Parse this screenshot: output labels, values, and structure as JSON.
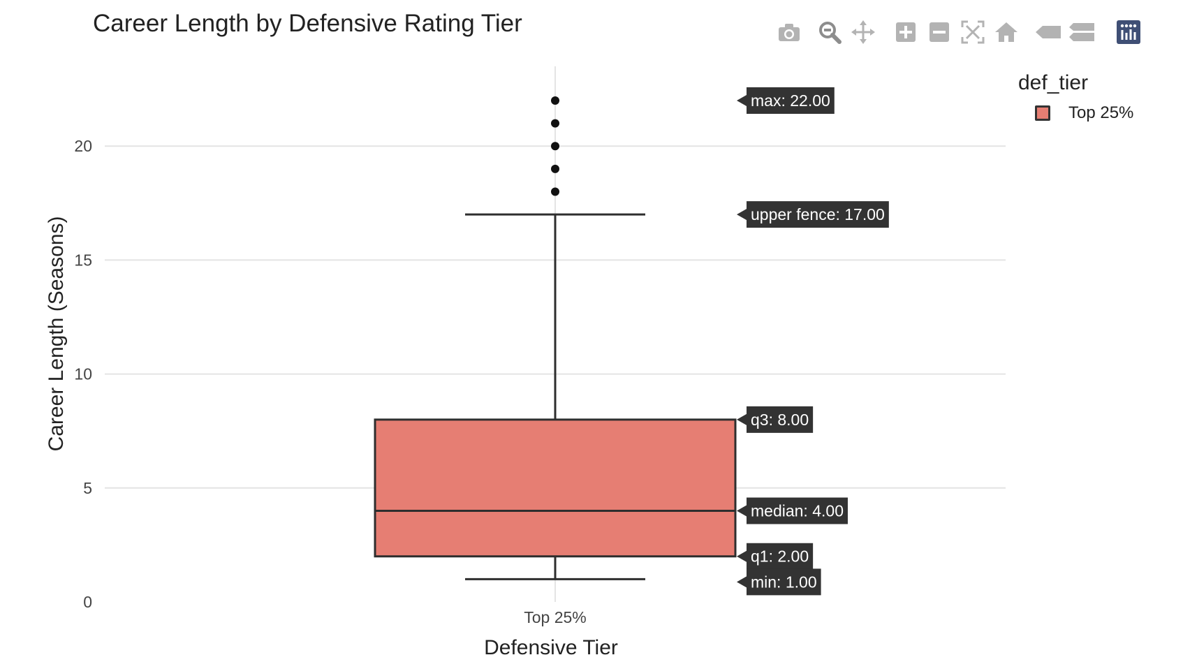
{
  "title": "Career Length by Defensive Rating Tier",
  "toolbar": {
    "icons": [
      "camera-icon",
      "zoom-icon",
      "pan-icon",
      "zoom-in-icon",
      "zoom-out-icon",
      "autoscale-icon",
      "home-icon",
      "hover-closest-icon",
      "hover-compare-icon",
      "plotly-logo-icon"
    ],
    "icon_color": "#b3b3b3",
    "logo_color": "#3f4f75"
  },
  "legend": {
    "title": "def_tier",
    "items": [
      {
        "label": "Top 25%",
        "color": "#e67e73"
      }
    ]
  },
  "chart_data": {
    "type": "box",
    "title": "Career Length by Defensive Rating Tier",
    "xlabel": "Defensive Tier",
    "ylabel": "Career Length (Seasons)",
    "categories": [
      "Top 25%"
    ],
    "ylim": [
      0,
      23.5
    ],
    "yticks": [
      0,
      5,
      10,
      15,
      20
    ],
    "grid": true,
    "legend_position": "top-right",
    "series": [
      {
        "name": "Top 25%",
        "category": "Top 25%",
        "color": "#e67e73",
        "line_color": "#2e2e2e",
        "min": 1,
        "q1": 2,
        "median": 4,
        "q3": 8,
        "upper_fence": 17,
        "max": 22,
        "outliers": [
          18,
          19,
          20,
          21,
          22
        ]
      }
    ],
    "hover_labels": [
      {
        "key": "max",
        "text": "max: 22.00"
      },
      {
        "key": "upper_fence",
        "text": "upper fence: 17.00"
      },
      {
        "key": "q3",
        "text": "q3: 8.00"
      },
      {
        "key": "median",
        "text": "median: 4.00"
      },
      {
        "key": "q1",
        "text": "q1: 2.00"
      },
      {
        "key": "min",
        "text": "min: 1.00"
      }
    ]
  }
}
